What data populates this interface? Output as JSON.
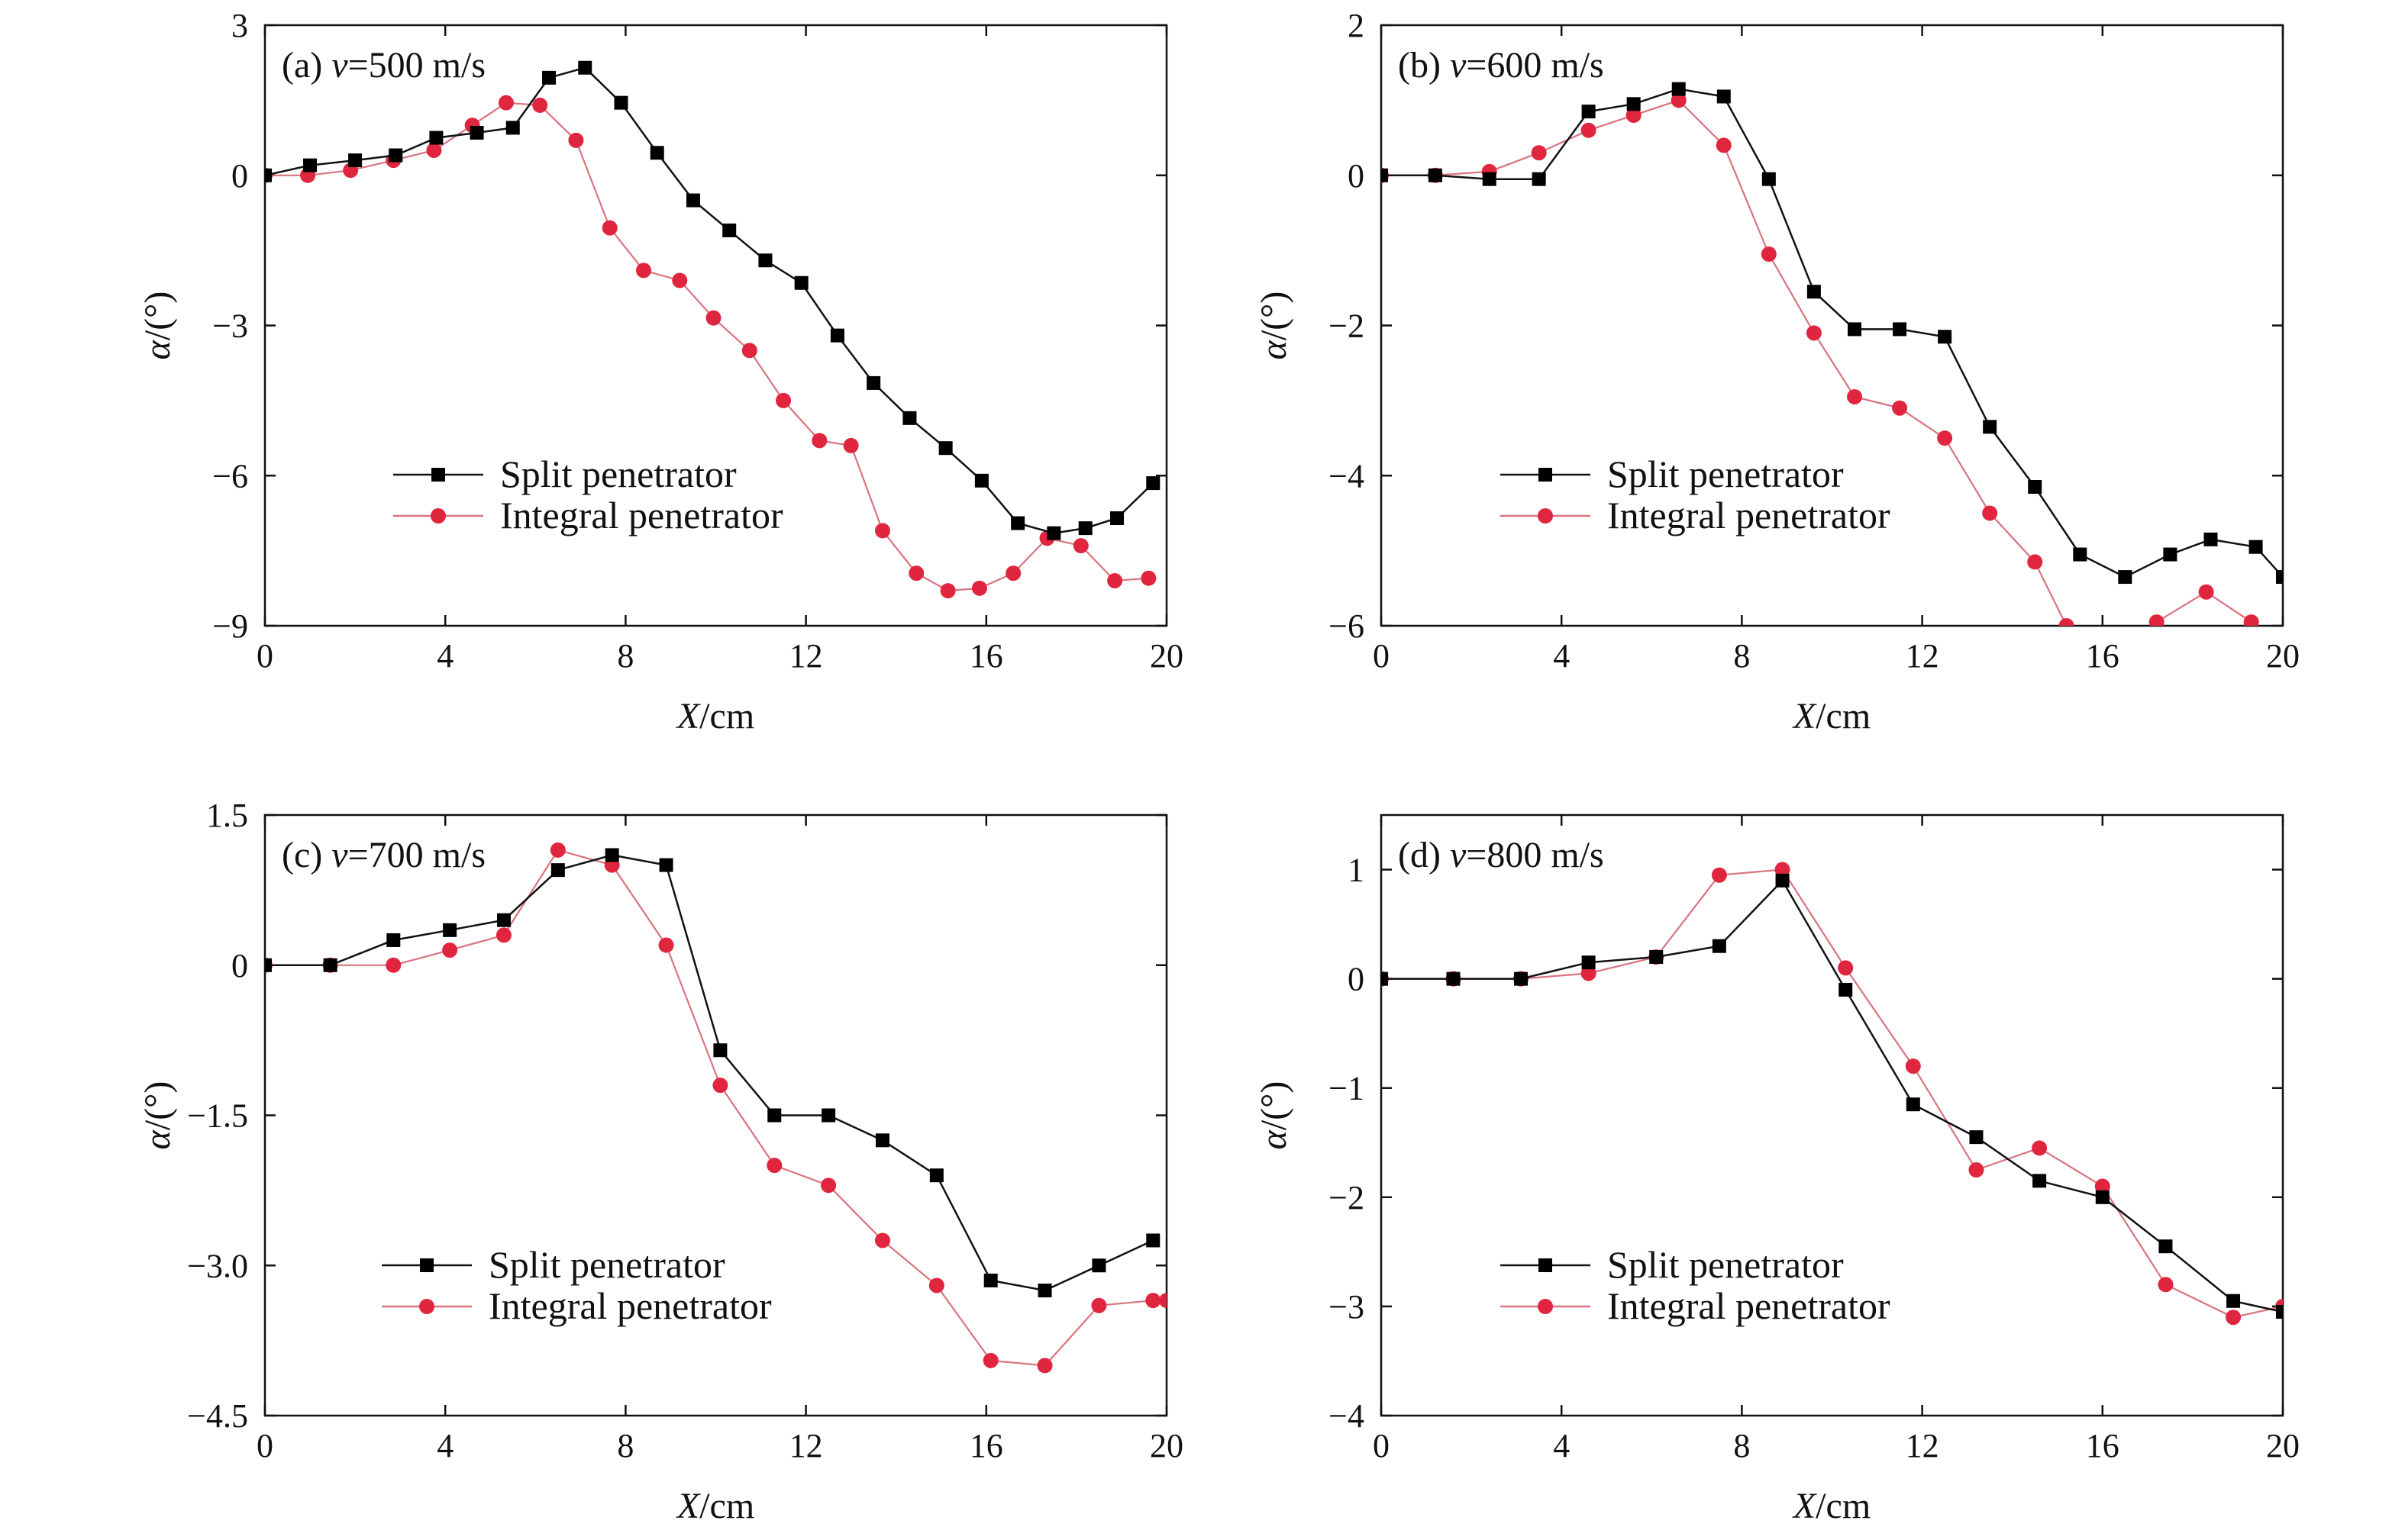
{
  "legend": {
    "split": "Split penetrator",
    "integral": "Integral penetrator"
  },
  "colors": {
    "split_line": "#111111",
    "split_marker": "#000000",
    "integral_line": "#d9737e",
    "integral_marker": "#e0263f",
    "axis": "#111111"
  },
  "chart_data": [
    {
      "type": "line",
      "panel_prefix": "(a) ",
      "panel_var": "v",
      "panel_suffix": "=500 m/s",
      "xlabel_var": "X",
      "xlabel_unit": "/cm",
      "ylabel_var": "α",
      "ylabel_unit": "/(°)",
      "xlim": [
        0,
        20
      ],
      "ylim": [
        -9,
        3
      ],
      "xticks": [
        0,
        4,
        8,
        12,
        16,
        20
      ],
      "xtick_labels": [
        "0",
        "4",
        "8",
        "12",
        "16",
        "20"
      ],
      "yticks": [
        3,
        0,
        -3,
        -6,
        -9
      ],
      "ytick_labels": [
        "3",
        "0",
        "−3",
        "−6",
        "−9"
      ],
      "legend_position": "lower-left",
      "series": [
        {
          "name": "Split penetrator",
          "marker": "square",
          "x": [
            0,
            1.0,
            2.0,
            2.9,
            3.8,
            4.7,
            5.5,
            6.3,
            7.1,
            7.9,
            8.7,
            9.5,
            10.3,
            11.1,
            11.9,
            12.7,
            13.5,
            14.3,
            15.1,
            15.9,
            16.7,
            17.5,
            18.2,
            18.9,
            19.7
          ],
          "y": [
            0,
            0.2,
            0.3,
            0.4,
            0.75,
            0.85,
            0.95,
            1.95,
            2.15,
            1.45,
            0.45,
            -0.5,
            -1.1,
            -1.7,
            -2.15,
            -3.2,
            -4.15,
            -4.85,
            -5.45,
            -6.1,
            -6.95,
            -7.15,
            -7.05,
            -6.85,
            -6.15
          ]
        },
        {
          "name": "Integral penetrator",
          "marker": "circle",
          "x": [
            0,
            0.95,
            1.9,
            2.85,
            3.75,
            4.6,
            5.35,
            6.1,
            6.9,
            7.65,
            8.4,
            9.2,
            9.95,
            10.75,
            11.5,
            12.3,
            13.0,
            13.7,
            14.45,
            15.15,
            15.85,
            16.6,
            17.35,
            18.1,
            18.85,
            19.6
          ],
          "y": [
            0,
            0,
            0.1,
            0.3,
            0.5,
            1.0,
            1.45,
            1.4,
            0.7,
            -1.05,
            -1.9,
            -2.1,
            -2.85,
            -3.5,
            -4.5,
            -5.3,
            -5.4,
            -7.1,
            -7.95,
            -8.3,
            -8.25,
            -7.95,
            -7.25,
            -7.4,
            -8.1,
            -8.05
          ]
        }
      ]
    },
    {
      "type": "line",
      "panel_prefix": "(b) ",
      "panel_var": "v",
      "panel_suffix": "=600 m/s",
      "xlabel_var": "X",
      "xlabel_unit": "/cm",
      "ylabel_var": "α",
      "ylabel_unit": "/(°)",
      "xlim": [
        0,
        20
      ],
      "ylim": [
        -6,
        2
      ],
      "xticks": [
        0,
        4,
        8,
        12,
        16,
        20
      ],
      "xtick_labels": [
        "0",
        "4",
        "8",
        "12",
        "16",
        "20"
      ],
      "yticks": [
        2,
        0,
        -2,
        -4,
        -6
      ],
      "ytick_labels": [
        "2",
        "0",
        "−2",
        "−4",
        "−6"
      ],
      "legend_position": "lower-left",
      "series": [
        {
          "name": "Split penetrator",
          "marker": "square",
          "x": [
            0,
            1.2,
            2.4,
            3.5,
            4.6,
            5.6,
            6.6,
            7.6,
            8.6,
            9.6,
            10.5,
            11.5,
            12.5,
            13.5,
            14.5,
            15.5,
            16.5,
            17.5,
            18.4,
            19.4,
            20
          ],
          "y": [
            0,
            0,
            -0.05,
            -0.05,
            0.85,
            0.95,
            1.15,
            1.05,
            -0.05,
            -1.55,
            -2.05,
            -2.05,
            -2.15,
            -3.35,
            -4.15,
            -5.05,
            -5.35,
            -5.05,
            -4.85,
            -4.95,
            -5.35
          ]
        },
        {
          "name": "Integral penetrator",
          "marker": "circle",
          "x": [
            0,
            1.2,
            2.4,
            3.5,
            4.6,
            5.6,
            6.6,
            7.6,
            8.6,
            9.6,
            10.5,
            11.5,
            12.5,
            13.5,
            14.5,
            15.2
          ],
          "y": [
            0,
            0,
            0.05,
            0.3,
            0.6,
            0.8,
            1.0,
            0.4,
            -1.05,
            -2.1,
            -2.95,
            -3.1,
            -3.5,
            -4.5,
            -5.15,
            -6.0
          ]
        },
        {
          "name": "Integral penetrator",
          "marker": "circle",
          "x": [
            17.2,
            18.3,
            19.3
          ],
          "y": [
            -5.95,
            -5.55,
            -5.95
          ]
        }
      ]
    },
    {
      "type": "line",
      "panel_prefix": "(c) ",
      "panel_var": "v",
      "panel_suffix": "=700 m/s",
      "xlabel_var": "X",
      "xlabel_unit": "/cm",
      "ylabel_var": "α",
      "ylabel_unit": "/(°)",
      "xlim": [
        0,
        20
      ],
      "ylim": [
        -4.5,
        1.5
      ],
      "xticks": [
        0,
        4,
        8,
        12,
        16,
        20
      ],
      "xtick_labels": [
        "0",
        "4",
        "8",
        "12",
        "16",
        "20"
      ],
      "yticks": [
        1.5,
        0,
        -1.5,
        -3.0,
        -4.5
      ],
      "ytick_labels": [
        "1.5",
        "0",
        "−1.5",
        "−3.0",
        "−4.5"
      ],
      "legend_position": "lower-left",
      "series": [
        {
          "name": "Split penetrator",
          "marker": "square",
          "x": [
            0,
            1.45,
            2.85,
            4.1,
            5.3,
            6.5,
            7.7,
            8.9,
            10.1,
            11.3,
            12.5,
            13.7,
            14.9,
            16.1,
            17.3,
            18.5,
            19.7
          ],
          "y": [
            0,
            0,
            0.25,
            0.35,
            0.45,
            0.95,
            1.1,
            1.0,
            -0.85,
            -1.5,
            -1.5,
            -1.75,
            -2.1,
            -3.15,
            -3.25,
            -3.0,
            -2.75
          ]
        },
        {
          "name": "Integral penetrator",
          "marker": "circle",
          "x": [
            0,
            1.45,
            2.85,
            4.1,
            5.3,
            6.5,
            7.7,
            8.9,
            10.1,
            11.3,
            12.5,
            13.7,
            14.9,
            16.1,
            17.3,
            18.5,
            19.7,
            20
          ],
          "y": [
            0,
            0,
            0,
            0.15,
            0.3,
            1.15,
            1.0,
            0.2,
            -1.2,
            -2.0,
            -2.2,
            -2.75,
            -3.2,
            -3.95,
            -4.0,
            -3.4,
            -3.35,
            -3.35
          ]
        }
      ]
    },
    {
      "type": "line",
      "panel_prefix": "(d) ",
      "panel_var": "v",
      "panel_suffix": "=800 m/s",
      "xlabel_var": "X",
      "xlabel_unit": "/cm",
      "ylabel_var": "α",
      "ylabel_unit": "/(°)",
      "xlim": [
        0,
        20
      ],
      "ylim": [
        -4,
        1.5
      ],
      "xticks": [
        0,
        4,
        8,
        12,
        16,
        20
      ],
      "xtick_labels": [
        "0",
        "4",
        "8",
        "12",
        "16",
        "20"
      ],
      "yticks": [
        1,
        0,
        -1,
        -2,
        -3,
        -4
      ],
      "ytick_labels": [
        "1",
        "0",
        "−1",
        "−2",
        "−3",
        "−4"
      ],
      "legend_position": "lower-left",
      "series": [
        {
          "name": "Split penetrator",
          "marker": "square",
          "x": [
            0,
            1.6,
            3.1,
            4.6,
            6.1,
            7.5,
            8.9,
            10.3,
            11.8,
            13.2,
            14.6,
            16.0,
            17.4,
            18.9,
            20
          ],
          "y": [
            0,
            0,
            0,
            0.15,
            0.2,
            0.3,
            0.9,
            -0.1,
            -1.15,
            -1.45,
            -1.85,
            -2.0,
            -2.45,
            -2.95,
            -3.05
          ]
        },
        {
          "name": "Integral penetrator",
          "marker": "circle",
          "x": [
            0,
            1.6,
            3.1,
            4.6,
            6.1,
            7.5,
            8.9,
            10.3,
            11.8,
            13.2,
            14.6,
            16.0,
            17.4,
            18.9,
            20
          ],
          "y": [
            0,
            0,
            0,
            0.05,
            0.2,
            0.95,
            1.0,
            0.1,
            -0.8,
            -1.75,
            -1.55,
            -1.9,
            -2.8,
            -3.1,
            -3.0
          ]
        }
      ]
    }
  ]
}
